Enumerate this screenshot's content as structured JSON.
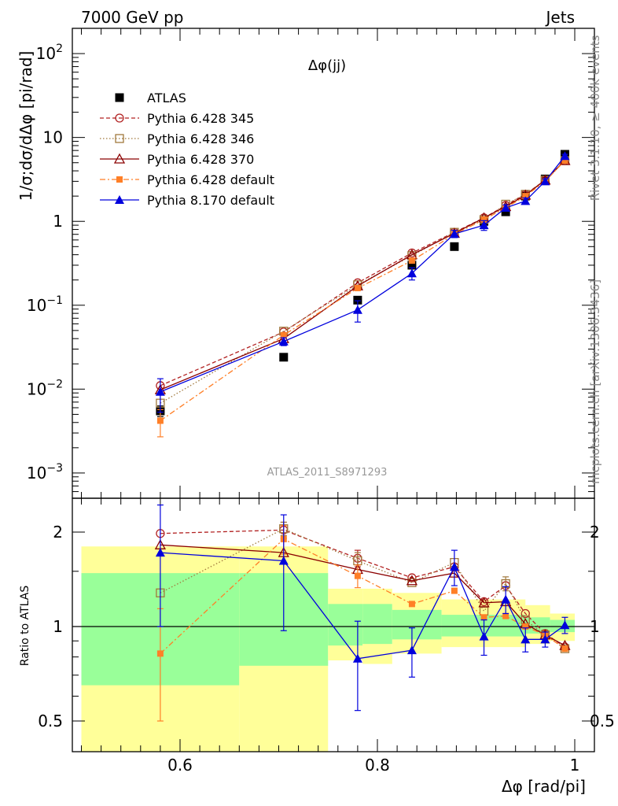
{
  "header": {
    "left": "7000 GeV pp",
    "right": "Jets"
  },
  "side_labels": {
    "rivet": "Rivet 3.1.10, ≥ 400k events",
    "mcplots": "mcplots.cern.ch [arXiv:1306.3436]"
  },
  "chart_data": [
    {
      "type": "line",
      "panel": "main",
      "title": "Δφ(jj)",
      "watermark": "ATLAS_2011_S8971293",
      "ylabel": "1/σ;dσ/dΔφ [pi/rad]",
      "yscale": "log",
      "ylim": [
        0.0005,
        200
      ],
      "xlim": [
        0.495,
        1.005
      ],
      "yticks": [
        {
          "value": 100,
          "base": "10",
          "exp": "2"
        },
        {
          "value": 10,
          "label": "10"
        },
        {
          "value": 1,
          "label": "1"
        },
        {
          "value": 0.1,
          "base": "10",
          "exp": "−1"
        },
        {
          "value": 0.01,
          "base": "10",
          "exp": "−2"
        },
        {
          "value": 0.001,
          "base": "10",
          "exp": "−3"
        }
      ],
      "x": [
        0.58,
        0.705,
        0.78,
        0.835,
        0.878,
        0.908,
        0.93,
        0.95,
        0.97,
        0.99
      ],
      "series": [
        {
          "name": "ATLAS",
          "color": "#000000",
          "marker": "filled-square",
          "values": [
            0.0055,
            0.024,
            0.115,
            0.3,
            0.5,
            1.0,
            1.3,
            2.0,
            3.2,
            6.3
          ],
          "err": [
            0.0008,
            0,
            0,
            0,
            0,
            0.08,
            0,
            0,
            0,
            0
          ]
        },
        {
          "name": "Pythia 6.428 345",
          "color": "#b22222",
          "dash": "5,3",
          "marker": "open-circle",
          "values": [
            0.011,
            0.048,
            0.185,
            0.42,
            0.74,
            1.1,
            1.55,
            2.1,
            3.1,
            5.3
          ],
          "err": [
            0,
            0,
            0,
            0,
            0,
            0,
            0,
            0,
            0,
            0
          ]
        },
        {
          "name": "Pythia 6.428 346",
          "color": "#a0783c",
          "dash": "1.5,2.5",
          "marker": "open-square",
          "values": [
            0.0068,
            0.049,
            0.175,
            0.39,
            0.74,
            1.05,
            1.6,
            2.1,
            3.1,
            5.3
          ],
          "err": [
            0,
            0,
            0,
            0,
            0,
            0,
            0,
            0,
            0,
            0
          ]
        },
        {
          "name": "Pythia 6.428 370",
          "color": "#8b0000",
          "dash": "",
          "marker": "open-triangle",
          "values": [
            0.0098,
            0.04,
            0.17,
            0.4,
            0.72,
            1.1,
            1.5,
            2.05,
            3.1,
            5.3
          ],
          "err": [
            0,
            0,
            0,
            0,
            0,
            0,
            0,
            0,
            0,
            0
          ]
        },
        {
          "name": "Pythia 6.428 default",
          "color": "#ff7f27",
          "dash": "7,3,2,3",
          "marker": "filled-square-small",
          "values": [
            0.0042,
            0.044,
            0.16,
            0.34,
            0.7,
            1.05,
            1.45,
            2.0,
            3.0,
            5.3
          ],
          "err": [
            0.0015,
            0,
            0,
            0,
            0,
            0,
            0,
            0,
            0,
            0
          ]
        },
        {
          "name": "Pythia 8.170 default",
          "color": "#0000dd",
          "dash": "",
          "marker": "filled-triangle",
          "values": [
            0.0093,
            0.037,
            0.088,
            0.24,
            0.71,
            0.9,
            1.45,
            1.75,
            3.0,
            6.0
          ],
          "err": [
            0.004,
            0.004,
            0.025,
            0.04,
            0.07,
            0.12,
            0.12,
            0.15,
            0.2,
            0.3
          ]
        }
      ]
    },
    {
      "type": "line",
      "panel": "ratio",
      "ylabel": "Ratio to ATLAS",
      "xlabel": "Δφ [rad/pi]",
      "yscale": "log",
      "ylim": [
        0.42,
        2.4
      ],
      "xlim": [
        0.495,
        1.005
      ],
      "yticks": [
        2,
        1,
        0.5
      ],
      "xticks": [
        0.6,
        0.8,
        1.0
      ],
      "xticklabels": [
        "0.6",
        "0.8",
        "1"
      ],
      "reference_line": 1,
      "bands": [
        {
          "x": [
            0.5,
            0.66
          ],
          "yellow": [
            0.0,
            1.8
          ],
          "green": [
            0.65,
            1.48
          ]
        },
        {
          "x": [
            0.66,
            0.75
          ],
          "yellow": [
            0.37,
            1.8
          ],
          "green": [
            0.75,
            1.48
          ]
        },
        {
          "x": [
            0.75,
            0.785
          ],
          "yellow": [
            0.78,
            1.32
          ],
          "green": [
            0.87,
            1.18
          ]
        },
        {
          "x": [
            0.785,
            0.815
          ],
          "yellow": [
            0.76,
            1.32
          ],
          "green": [
            0.88,
            1.18
          ]
        },
        {
          "x": [
            0.815,
            0.865
          ],
          "yellow": [
            0.82,
            1.28
          ],
          "green": [
            0.91,
            1.13
          ]
        },
        {
          "x": [
            0.865,
            0.95
          ],
          "yellow": [
            0.86,
            1.22
          ],
          "green": [
            0.93,
            1.09
          ]
        },
        {
          "x": [
            0.95,
            0.975
          ],
          "yellow": [
            0.88,
            1.17
          ],
          "green": [
            0.95,
            1.07
          ]
        },
        {
          "x": [
            0.975,
            1.0
          ],
          "yellow": [
            0.9,
            1.1
          ],
          "green": [
            0.96,
            1.05
          ]
        }
      ],
      "x": [
        0.58,
        0.705,
        0.78,
        0.835,
        0.878,
        0.908,
        0.93,
        0.95,
        0.97,
        0.99
      ],
      "series": [
        {
          "name": "Pythia 6.428 345",
          "color": "#b22222",
          "dash": "5,3",
          "marker": "open-circle",
          "values": [
            1.98,
            2.03,
            1.65,
            1.43,
            1.55,
            1.2,
            1.35,
            1.1,
            0.95,
            0.86
          ],
          "err": [
            0,
            0.12,
            0.1,
            0,
            0,
            0,
            0,
            0,
            0,
            0
          ]
        },
        {
          "name": "Pythia 6.428 346",
          "color": "#a0783c",
          "dash": "1.5,2.5",
          "marker": "open-square",
          "values": [
            1.28,
            2.05,
            1.62,
            1.38,
            1.6,
            1.12,
            1.37,
            1.05,
            0.94,
            0.85
          ],
          "err": [
            0,
            0.1,
            0.1,
            0,
            0,
            0,
            0.07,
            0,
            0,
            0
          ]
        },
        {
          "name": "Pythia 6.428 370",
          "color": "#8b0000",
          "dash": "",
          "marker": "open-triangle",
          "values": [
            1.82,
            1.72,
            1.52,
            1.4,
            1.48,
            1.19,
            1.2,
            1.02,
            0.94,
            0.87
          ],
          "err": [
            0,
            0,
            0,
            0,
            0,
            0,
            0,
            0,
            0,
            0
          ]
        },
        {
          "name": "Pythia 6.428 default",
          "color": "#ff7f27",
          "dash": "7,3,2,3",
          "marker": "filled-square-small",
          "values": [
            0.82,
            1.9,
            1.45,
            1.18,
            1.3,
            1.07,
            1.08,
            1.0,
            0.94,
            0.85
          ],
          "err": [
            0.32,
            0.2,
            0.12,
            0,
            0,
            0,
            0,
            0,
            0,
            0
          ]
        },
        {
          "name": "Pythia 8.170 default",
          "color": "#0000dd",
          "dash": "",
          "marker": "filled-triangle",
          "values": [
            1.72,
            1.62,
            0.79,
            0.84,
            1.55,
            0.93,
            1.22,
            0.91,
            0.91,
            1.01
          ],
          "err": [
            0.72,
            0.65,
            0.25,
            0.15,
            0.2,
            0.12,
            0.12,
            0.08,
            0.05,
            0.06
          ]
        }
      ]
    }
  ]
}
